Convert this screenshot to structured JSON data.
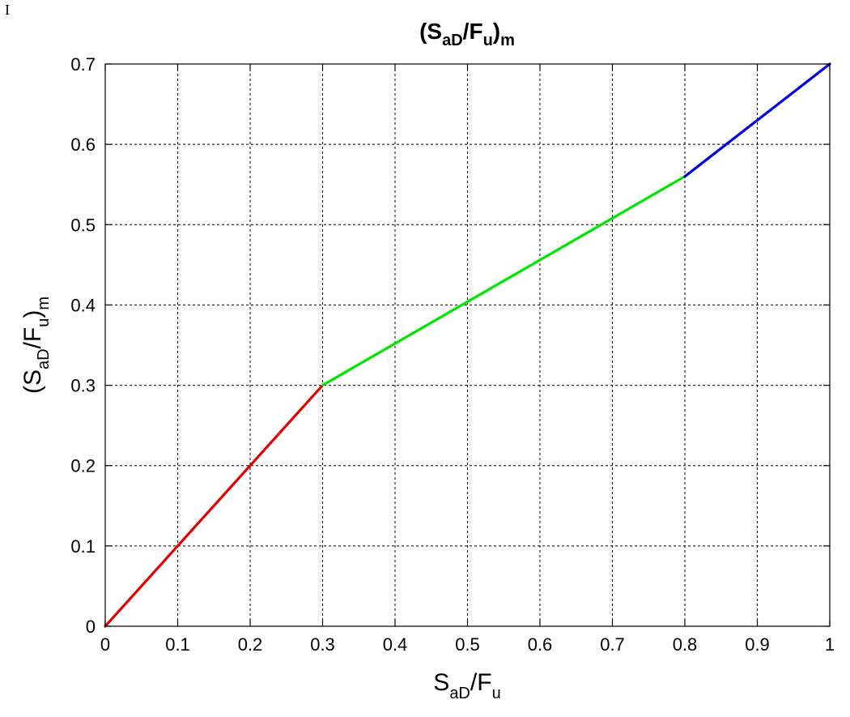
{
  "chart_data": {
    "type": "line",
    "title": {
      "base": "(S",
      "sub1": "aD",
      "mid": "/F",
      "sub2": "u",
      "close": ")",
      "sub3": "m"
    },
    "xlabel": {
      "base": "S",
      "sub1": "aD",
      "mid": "/F",
      "sub2": "u"
    },
    "ylabel": {
      "base": "(S",
      "sub1": "aD",
      "mid": "/F",
      "sub2": "u",
      "close": ")",
      "sub3": "m"
    },
    "xlim": [
      0,
      1
    ],
    "ylim": [
      0,
      0.7
    ],
    "xticks": [
      0,
      0.1,
      0.2,
      0.3,
      0.4,
      0.5,
      0.6,
      0.7,
      0.8,
      0.9,
      1
    ],
    "yticks": [
      0,
      0.1,
      0.2,
      0.3,
      0.4,
      0.5,
      0.6,
      0.7
    ],
    "xtick_labels": [
      "0",
      "0.1",
      "0.2",
      "0.3",
      "0.4",
      "0.5",
      "0.6",
      "0.7",
      "0.8",
      "0.9",
      "1"
    ],
    "ytick_labels": [
      "0",
      "0.1",
      "0.2",
      "0.3",
      "0.4",
      "0.5",
      "0.6",
      "0.7"
    ],
    "grid": true,
    "series": [
      {
        "color": "#e00000",
        "x": [
          0,
          0.3
        ],
        "y": [
          0,
          0.3
        ]
      },
      {
        "color": "#00e600",
        "x": [
          0.3,
          0.8
        ],
        "y": [
          0.3,
          0.56
        ]
      },
      {
        "color": "#0000e0",
        "x": [
          0.8,
          1.0
        ],
        "y": [
          0.56,
          0.7
        ]
      }
    ]
  },
  "corner_mark": "I"
}
